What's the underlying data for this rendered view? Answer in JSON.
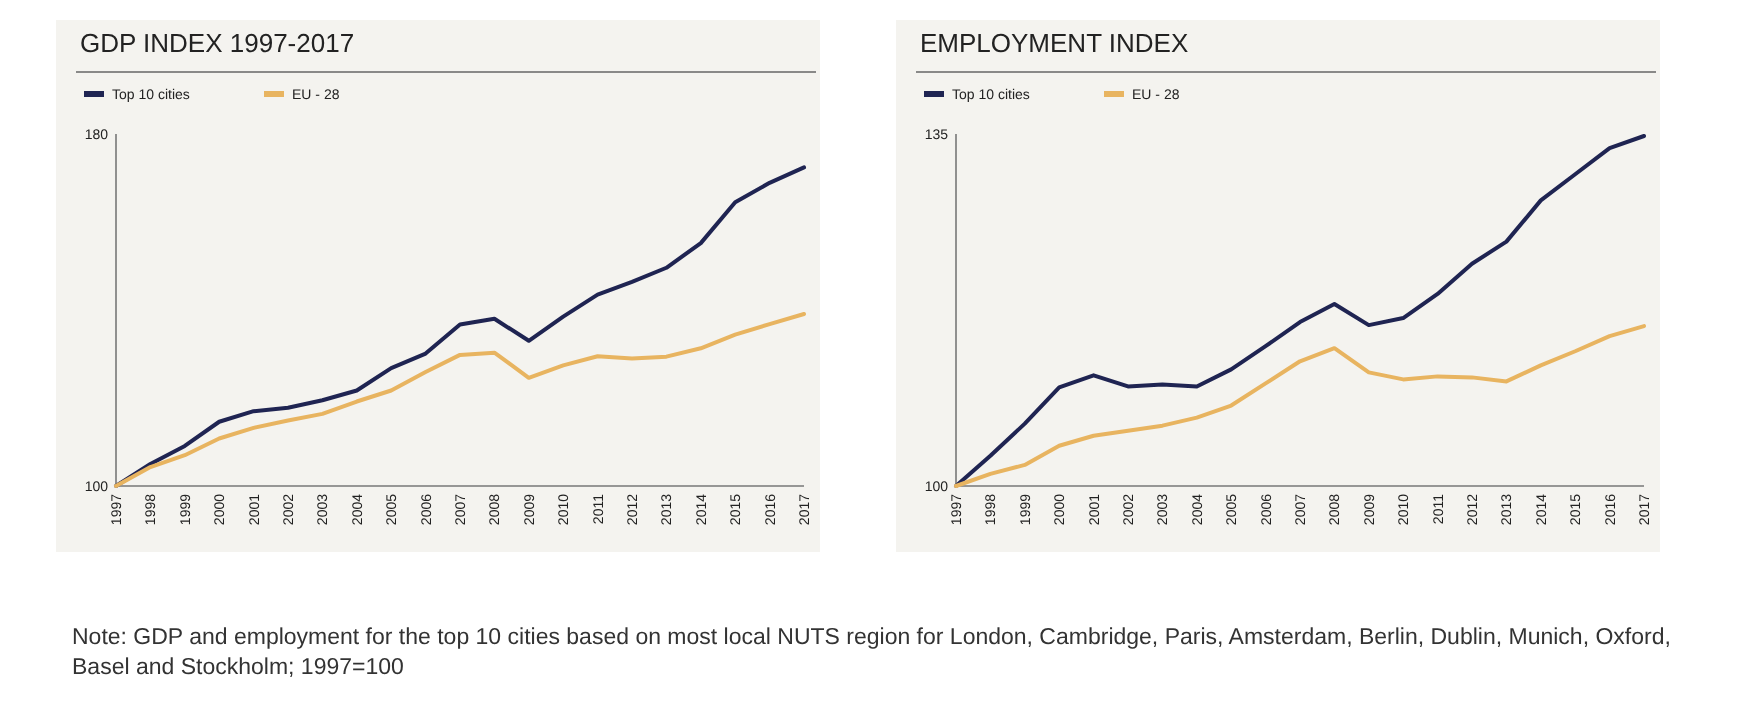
{
  "chart_data": [
    {
      "type": "line",
      "title": "GDP INDEX 1997-2017",
      "categories": [
        "1997",
        "1998",
        "1999",
        "2000",
        "2001",
        "2002",
        "2003",
        "2004",
        "2005",
        "2006",
        "2007",
        "2008",
        "2009",
        "2010",
        "2011",
        "2012",
        "2013",
        "2014",
        "2015",
        "2016",
        "2017"
      ],
      "ylim": [
        100,
        180
      ],
      "yticks": [
        100,
        180
      ],
      "legend": "top left",
      "grid": false,
      "marker": "none",
      "series": [
        {
          "name": "Top 10 cities",
          "color": "#1f2452",
          "values": [
            100,
            105.0,
            109.1,
            114.6,
            117.0,
            117.8,
            119.5,
            121.7,
            126.8,
            130.1,
            136.7,
            138.0,
            133.0,
            138.5,
            143.5,
            146.4,
            149.6,
            155.2,
            164.5,
            168.9,
            172.4
          ]
        },
        {
          "name": "EU - 28",
          "color": "#e8b460",
          "values": [
            100,
            104.3,
            107.0,
            110.8,
            113.2,
            114.9,
            116.4,
            119.2,
            121.7,
            125.9,
            129.8,
            130.3,
            124.6,
            127.4,
            129.5,
            129.0,
            129.4,
            131.3,
            134.4,
            136.8,
            139.1
          ]
        }
      ],
      "annotations": [
        "Note: GDP and employment for the top 10 cities based on most local NUTS region for London, Cambridge, Paris, Amsterdam, Berlin, Dublin, Munich, Oxford, Basel and Stockholm; 1997=100"
      ]
    },
    {
      "type": "line",
      "title": "EMPLOYMENT INDEX",
      "categories": [
        "1997",
        "1998",
        "1999",
        "2000",
        "2001",
        "2002",
        "2003",
        "2004",
        "2005",
        "2006",
        "2007",
        "2008",
        "2009",
        "2010",
        "2011",
        "2012",
        "2013",
        "2014",
        "2015",
        "2016",
        "2017"
      ],
      "ylim": [
        100,
        135
      ],
      "yticks": [
        100,
        135
      ],
      "legend": "top left",
      "grid": false,
      "marker": "none",
      "series": [
        {
          "name": "Top 10 cities",
          "color": "#1f2452",
          "values": [
            100,
            103.0,
            106.2,
            109.8,
            111.0,
            109.9,
            110.1,
            109.9,
            111.6,
            113.9,
            116.3,
            118.1,
            116.0,
            116.7,
            119.1,
            122.1,
            124.3,
            128.4,
            131.0,
            133.6,
            134.8
          ]
        },
        {
          "name": "EU - 28",
          "color": "#e8b460",
          "values": [
            100,
            101.2,
            102.1,
            104.0,
            105.0,
            105.5,
            106.0,
            106.8,
            108.0,
            110.2,
            112.4,
            113.7,
            111.3,
            110.6,
            110.9,
            110.8,
            110.4,
            112.0,
            113.4,
            114.9,
            115.9
          ]
        }
      ]
    }
  ]
}
